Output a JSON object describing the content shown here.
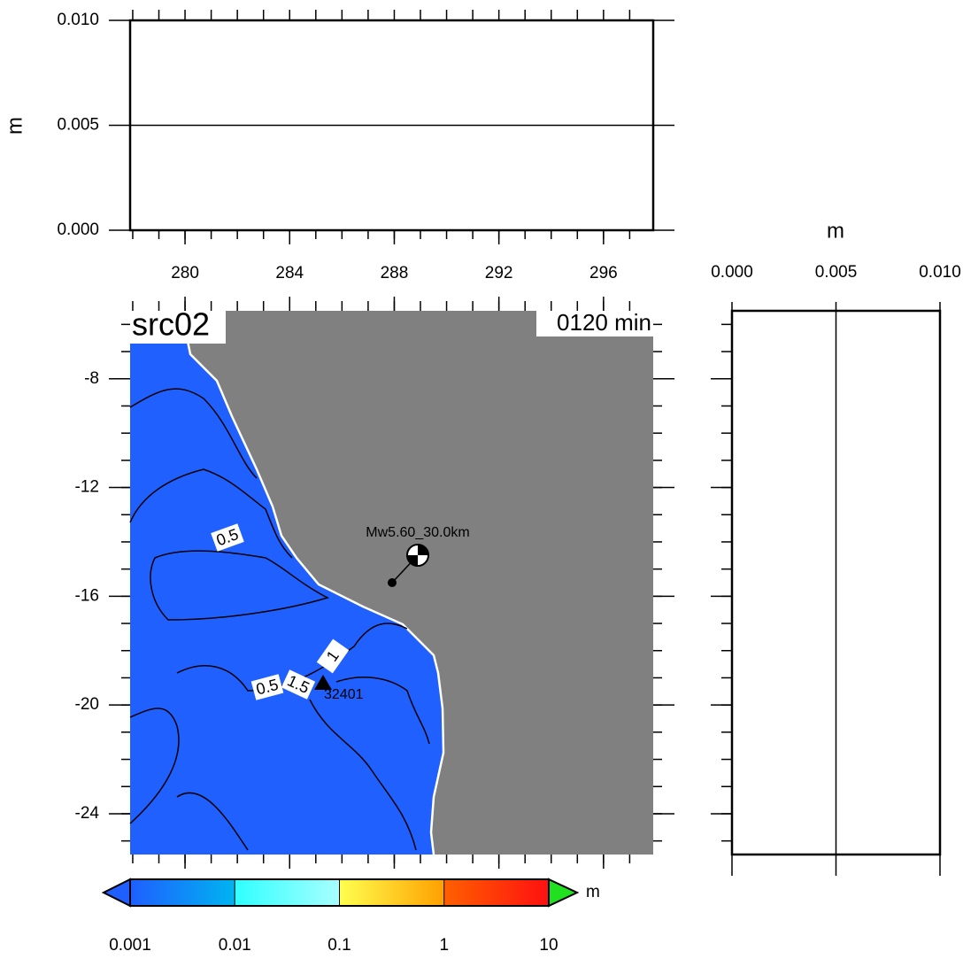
{
  "top_panel": {
    "ylabel": "m",
    "ylim": [
      0,
      0.01
    ],
    "yticks": [
      {
        "value": 0,
        "label": "0.000"
      },
      {
        "value": 0.005,
        "label": "0.005"
      },
      {
        "value": 0.01,
        "label": "0.010"
      }
    ],
    "xlim": [
      277.9,
      297.9
    ],
    "xticks": [
      280,
      284,
      288,
      292,
      296
    ]
  },
  "map": {
    "title": "src02",
    "time_label": "0120 min",
    "ylim": [
      -25.5,
      -5.5
    ],
    "yticks": [
      -8,
      -12,
      -16,
      -20,
      -24
    ],
    "source_label": "Mw5.60_30.0km",
    "station_label": "32401",
    "contour_labels": [
      "0.5",
      "1",
      "1.5",
      "0.5"
    ],
    "sea_color": "#2060ff",
    "land_color": "#808080"
  },
  "side_panel": {
    "xlabel": "m",
    "xlim": [
      0,
      0.01
    ],
    "xticks": [
      {
        "value": 0,
        "label": "0.000"
      },
      {
        "value": 0.005,
        "label": "0.005"
      },
      {
        "value": 0.01,
        "label": "0.010"
      }
    ]
  },
  "colorbar": {
    "scale": "log",
    "unit": "m",
    "ticks": [
      0.001,
      0.01,
      0.1,
      1,
      10
    ],
    "colors": [
      "#1f5fff",
      "#00b4f0",
      "#30ffff",
      "#a8ffff",
      "#ffff50",
      "#ffa000",
      "#ff6000",
      "#ff1010"
    ],
    "under_color": "#1f5fff",
    "over_color": "#20e020"
  }
}
